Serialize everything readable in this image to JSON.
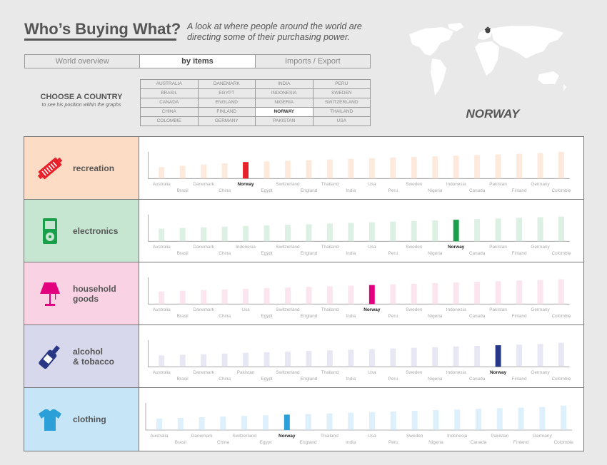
{
  "header": {
    "title": "Who’s Buying What?",
    "subtitle": "A look at where people around the world are directing some of their purchasing power."
  },
  "tabs": [
    "World overview",
    "by items",
    "Imports / Export"
  ],
  "chooser": {
    "title": "CHOOSE A COUNTRY",
    "subtitle": "to see his position within the graphs",
    "countries": [
      "AUSTRALIA",
      "DANEMARK",
      "INDIA",
      "PERU",
      "BRASIL",
      "EGYPT",
      "INDONESIA",
      "SWEDEN",
      "CANADA",
      "ENGLAND",
      "NIGERIA",
      "SWITZERLAND",
      "CHINA",
      "FINLAND",
      "NORWAY",
      "THAILAND",
      "COLOMBIE",
      "GERMANY",
      "PAKISTAN",
      "USA"
    ],
    "selected": "NORWAY"
  },
  "selected_country": "NORWAY",
  "colors": {
    "recreation": "#e8202a",
    "electronics": "#1aa04a",
    "household": "#e3007f",
    "alcohol": "#283785",
    "clothing": "#2a9fd8"
  },
  "chart_data": [
    {
      "type": "bar",
      "category": "recreation",
      "label": [
        "recreation"
      ],
      "bg": "#fcdcc4",
      "color": "#e8202a",
      "icon": "ticket-icon",
      "categories": [
        "Australia",
        "Brasil",
        "Danemark",
        "China",
        "Norway",
        "Egypt",
        "Switzerland",
        "England",
        "Thailand",
        "India",
        "Usa",
        "Peru",
        "Sweden",
        "Nigeria",
        "Indonesia",
        "Canada",
        "Pakistan",
        "Finland",
        "Germany",
        "Colombie"
      ],
      "values": [
        18,
        20,
        22,
        24,
        26,
        27,
        28,
        29,
        30,
        31,
        32,
        33,
        34,
        35,
        36,
        37,
        38,
        39,
        40,
        42
      ],
      "highlight": "Norway"
    },
    {
      "type": "bar",
      "category": "electronics",
      "label": [
        "electronics"
      ],
      "bg": "#c7e6d2",
      "color": "#1aa04a",
      "icon": "ipod-icon",
      "categories": [
        "Australia",
        "Brasil",
        "Danemark",
        "China",
        "Indonesia",
        "Egypt",
        "Switzerland",
        "England",
        "Thailand",
        "India",
        "Usa",
        "Peru",
        "Sweden",
        "Nigeria",
        "Norway",
        "Canada",
        "Pakistan",
        "Finland",
        "Germany",
        "Colombie"
      ],
      "values": [
        20,
        21,
        22,
        23,
        24,
        25,
        26,
        27,
        28,
        29,
        30,
        31,
        32,
        33,
        34,
        35,
        36,
        37,
        38,
        39
      ],
      "highlight": "Norway"
    },
    {
      "type": "bar",
      "category": "household goods",
      "label": [
        "household",
        "goods"
      ],
      "bg": "#f9d3e4",
      "color": "#e3007f",
      "icon": "lamp-icon",
      "categories": [
        "Australia",
        "Brasil",
        "Danemark",
        "China",
        "Usa",
        "Egypt",
        "Switzerland",
        "England",
        "Thailand",
        "India",
        "Norway",
        "Peru",
        "Sweden",
        "Nigeria",
        "Indonesia",
        "Canada",
        "Pakistan",
        "Finland",
        "Germany",
        "Colombie"
      ],
      "values": [
        20,
        21,
        22,
        23,
        24,
        25,
        26,
        27,
        28,
        29,
        30,
        31,
        32,
        33,
        34,
        35,
        36,
        37,
        38,
        39
      ],
      "highlight": "Norway"
    },
    {
      "type": "bar",
      "category": "alcohol & tobacco",
      "label": [
        "alcohol",
        "& tobacco"
      ],
      "bg": "#d8d8ec",
      "color": "#283785",
      "icon": "bottle-icon",
      "categories": [
        "Australia",
        "Brasil",
        "Danemark",
        "China",
        "Pakistan",
        "Egypt",
        "Switzerland",
        "England",
        "Thailand",
        "India",
        "Usa",
        "Peru",
        "Sweden",
        "Nigeria",
        "Indonesia",
        "Canada",
        "Norway",
        "Finland",
        "Germany",
        "Colombie"
      ],
      "values": [
        18,
        19,
        20,
        21,
        22,
        23,
        24,
        25,
        26,
        27,
        28,
        29,
        30,
        31,
        32,
        33,
        34,
        35,
        36,
        38
      ],
      "highlight": "Norway"
    },
    {
      "type": "bar",
      "category": "clothing",
      "label": [
        "clothing"
      ],
      "bg": "#c6e6f8",
      "color": "#2a9fd8",
      "icon": "tshirt-icon",
      "categories": [
        "Australia",
        "Brasil",
        "Danemark",
        "China",
        "Switzerland",
        "Egypt",
        "Norway",
        "England",
        "Thailand",
        "India",
        "Usa",
        "Peru",
        "Sweden",
        "Nigeria",
        "Indonesia",
        "Canada",
        "Pakistan",
        "Finland",
        "Germany",
        "Colombie"
      ],
      "values": [
        18,
        19,
        20,
        21,
        22,
        23,
        24,
        25,
        26,
        27,
        28,
        29,
        30,
        31,
        32,
        33,
        34,
        35,
        36,
        38
      ],
      "highlight": "Norway"
    }
  ]
}
